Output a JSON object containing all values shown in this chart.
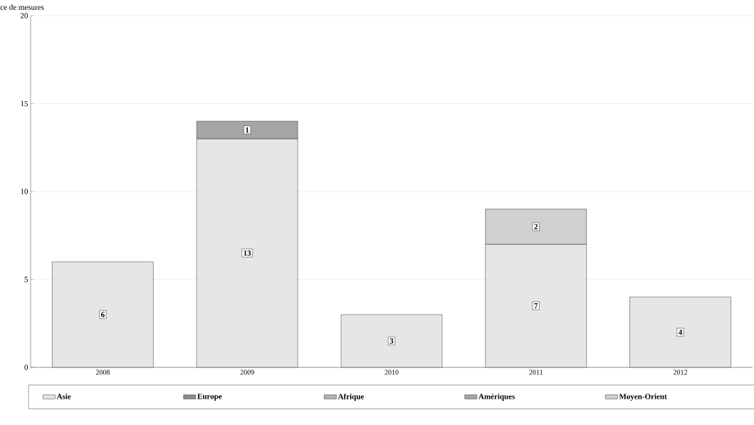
{
  "chart_data": {
    "type": "bar",
    "ylabel": "ce de mesures",
    "stacked": true,
    "categories": [
      "2008",
      "2009",
      "2010",
      "2011",
      "2012"
    ],
    "series": [
      {
        "name": "Asie",
        "color": "#e6e6e6",
        "values": [
          6,
          13,
          3,
          7,
          4
        ]
      },
      {
        "name": "Europe",
        "color": "#8c8c8c",
        "values": [
          null,
          null,
          null,
          null,
          null
        ]
      },
      {
        "name": "Afrique",
        "color": "#b3b3b3",
        "values": [
          null,
          null,
          null,
          null,
          null
        ]
      },
      {
        "name": "Amériques",
        "color": "#a6a6a6",
        "values": [
          null,
          1,
          null,
          null,
          null
        ]
      },
      {
        "name": "Moyen-Orient",
        "color": "#d0d0d0",
        "values": [
          null,
          null,
          null,
          2,
          null
        ]
      }
    ],
    "ylim": [
      0,
      20
    ],
    "yticks": [
      0,
      5,
      10,
      15,
      20
    ],
    "grid": "y",
    "legend": "bottom",
    "data_labels": true
  }
}
